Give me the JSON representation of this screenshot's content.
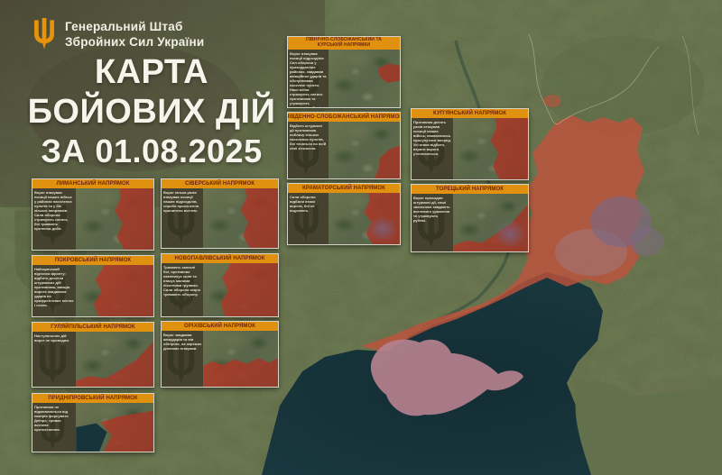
{
  "brand": {
    "line1": "Генеральний Штаб",
    "line2": "Збройних Сил України"
  },
  "title": {
    "line1": "КАРТА",
    "line2": "БОЙОВИХ ДІЙ",
    "line3": "ЗА 01.08.2025"
  },
  "colors": {
    "accent_orange": "#e0910f",
    "panel_header_text": "#6f250e",
    "occupied_red": "#bf5440",
    "crimea_pink": "#b5818f",
    "sea_dark_teal": "#17333a",
    "land_olive": "#66704c"
  },
  "panels": [
    {
      "id": "pivnichno-slobozhanskyi",
      "title": "ПІВНІЧНО-СЛОБОЖАНСЬКИЙ ТА",
      "title2": "КУРСЬКИЙ НАПРЯМКИ",
      "map_shape": "v-spots",
      "note": "Ворог атакував позиції підрозділів Сил оборони у прикордонних районах, завдавав авіаційних ударів та обстрілював населені пункти. Наші воїни стримують натиск противника та утримують визначені рубежі."
    },
    {
      "id": "pivdenno-slobozhanskyi",
      "title": "ПІВДЕННО-СЛОБОЖАНСЬКИЙ НАПРЯМОК",
      "map_shape": "v-right-sm",
      "note": "Відбито штурмові дії противника поблизу кількох населених пунктів, бої точаться по всій лінії зіткнення."
    },
    {
      "id": "kramatorskyi",
      "title": "КРАМАТОРСЬКИЙ НАПРЯМОК",
      "map_shape": "v-right v-purple",
      "note": "Сили оборони відбили атаки ворога, бої не вщухають."
    },
    {
      "id": "kupianskyi",
      "title": "КУП'ЯНСЬКИЙ НАПРЯМОК",
      "map_shape": "v-right",
      "note": "Противник десять разів атакував позиції наших військ, намагаючись просунутися вперед. Усі атаки відбито, втрати ворога уточнюються."
    },
    {
      "id": "toretskyi",
      "title": "ТОРЕЦЬКИЙ НАПРЯМОК",
      "map_shape": "v-diag v-purple",
      "note": "Ворог проводив штурмові дії, наші захисники завдають вогневого ураження та утримують рубежі."
    },
    {
      "id": "lymanskyi",
      "title": "ЛИМАНСЬКИЙ НАПРЯМОК",
      "map_shape": "v-right",
      "note": "Ворог атакував позиції наших військ у районах населених пунктів та у бік кількох напрямків. Сили оборони стримують натиск, бої тривають протягом доби."
    },
    {
      "id": "pokrovskyi",
      "title": "ПОКРОВСЬКИЙ НАПРЯМОК",
      "map_shape": "v-wide",
      "note": "Найгарячіший відтинок фронту: відбито десятки штурмових дій противника, авіація ворога завдавала ударів по прифронтових містах і селах."
    },
    {
      "id": "huliaipilskyi",
      "title": "ГУЛЯЙПІЛЬСЬКИЙ НАПРЯМОК",
      "map_shape": "v-diag",
      "note": "Наступальних дій ворог не проводив."
    },
    {
      "id": "prydniprovskyi",
      "title": "ПРИДНІПРОВСЬКИЙ НАПРЯМОК",
      "map_shape": "v-sea-red",
      "note": "Противник не відмовляється від намірів форсувати Дніпро, триває вогневе протистояння."
    },
    {
      "id": "siverskyi",
      "title": "СІВЕРСЬКИЙ НАПРЯМОК",
      "map_shape": "v-right",
      "note": "Ворог кілька разів атакував позиції наших підрозділів, спроби просочення припинено вогнем."
    },
    {
      "id": "novopavlivskyi",
      "title": "НОВОПАВЛІВСЬКИЙ НАПРЯМОК",
      "map_shape": "v-wide",
      "note": "Тривають запеклі бої, противник накопичує сили та атакує малими піхотними групами. Сили оборони міцно тримають оборону."
    },
    {
      "id": "orikhivskyi",
      "title": "ОРІХІВСЬКИЙ НАПРЯМОК",
      "map_shape": "v-bottom",
      "note": "Ворог завдавав авіаударів та вів обстріли, на окремих ділянках атакував."
    }
  ]
}
